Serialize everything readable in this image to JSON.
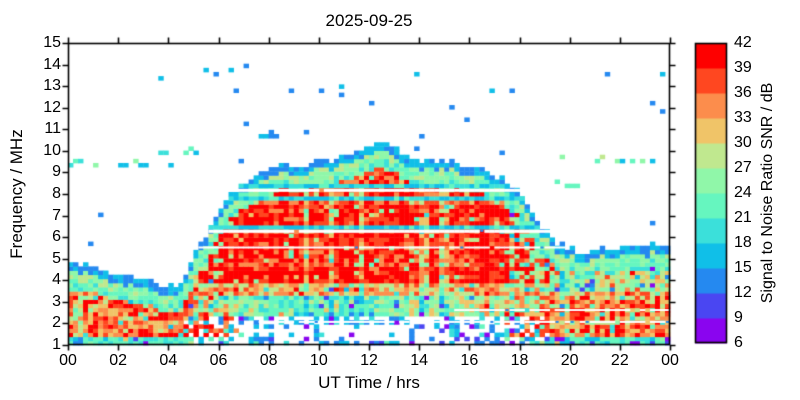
{
  "chart_data": {
    "type": "heatmap",
    "title": "2025-09-25",
    "xlabel": "UT Time / hrs",
    "ylabel": "Frequency / MHz",
    "xlim": [
      0,
      24
    ],
    "ylim": [
      1,
      15
    ],
    "grid": false,
    "x_tick_labels": [
      "00",
      "02",
      "04",
      "06",
      "08",
      "10",
      "12",
      "14",
      "16",
      "18",
      "20",
      "22",
      "00"
    ],
    "y_tick_labels": [
      "1",
      "2",
      "3",
      "4",
      "5",
      "6",
      "7",
      "8",
      "9",
      "10",
      "11",
      "12",
      "13",
      "14",
      "15"
    ],
    "colorbar": {
      "label": "Signal to Noise Ratio SNR / dB",
      "min": 6,
      "max": 42,
      "step": 3,
      "tick_labels": [
        "6",
        "9",
        "12",
        "15",
        "18",
        "21",
        "24",
        "27",
        "30",
        "33",
        "36",
        "39",
        "42"
      ],
      "colors": [
        "#8a05ef",
        "#4a46f2",
        "#2589f0",
        "#10bfe8",
        "#3be0da",
        "#66f6bf",
        "#90f7a9",
        "#c0e88f",
        "#f0c468",
        "#fc8d4c",
        "#ff4720",
        "#fe0000"
      ]
    },
    "envelope_mhz_by_hour": {
      "t": [
        0,
        0.5,
        1,
        1.5,
        2,
        2.5,
        3,
        3.5,
        4,
        4.3,
        4.7,
        5,
        5.5,
        6,
        6.5,
        7,
        7.5,
        8,
        8.5,
        9,
        9.5,
        10,
        10.5,
        11,
        11.5,
        12,
        12.4,
        12.8,
        13.2,
        13.6,
        14,
        14.5,
        15,
        15.5,
        16,
        16.5,
        17,
        17.5,
        18,
        18.5,
        19,
        19.4,
        19.8,
        20.2,
        20.6,
        21,
        21.5,
        22,
        22.5,
        23,
        23.5,
        24
      ],
      "f": [
        4.8,
        4.7,
        4.55,
        4.45,
        4.3,
        4.2,
        4.05,
        3.85,
        3.7,
        3.65,
        4.3,
        5.1,
        6.2,
        7.2,
        8.0,
        8.5,
        8.85,
        9.15,
        9.3,
        9.45,
        9.3,
        9.55,
        9.5,
        9.75,
        10.0,
        10.25,
        10.4,
        10.25,
        9.9,
        9.6,
        9.55,
        9.65,
        9.5,
        9.55,
        9.3,
        9.15,
        8.85,
        8.55,
        8.0,
        7.2,
        6.3,
        5.8,
        5.55,
        5.4,
        5.3,
        5.45,
        5.55,
        5.5,
        5.6,
        5.55,
        5.65,
        5.7
      ]
    },
    "night_strong_band_mhz": [
      1.35,
      3.4
    ],
    "day_strong_band_lower_mhz": 3.9,
    "day_hours": [
      4.4,
      19.9
    ],
    "gap_lines": [
      {
        "f": 8.17,
        "t0": 6.3,
        "t1": 19.0,
        "w": 3,
        "dash_p": 0.95
      },
      {
        "f": 6.27,
        "t0": 5.0,
        "t1": 19.4,
        "w": 3,
        "dash_p": 0.95
      },
      {
        "f": 5.52,
        "t0": 5.2,
        "t1": 19.8,
        "w": 2,
        "dash_p": 0.9
      },
      {
        "f": 2.07,
        "t0": 7.5,
        "t1": 24.0,
        "w": 2,
        "dash_p": 0.8
      },
      {
        "f": 2.62,
        "t0": 15.5,
        "t1": 24.0,
        "w": 2,
        "dash_p": 0.8
      }
    ],
    "interference_lines": [
      {
        "f": 7.9,
        "t0": 6.3,
        "t1": 19.0
      },
      {
        "f": 8.45,
        "t0": 6.5,
        "t1": 18.8
      },
      {
        "f": 6.42,
        "t0": 5.2,
        "t1": 19.3
      }
    ],
    "sporadic_traces": [
      {
        "f": 9.4,
        "t0": 0.0,
        "t1": 4.6,
        "p": 0.5,
        "snr_min": 14,
        "snr_max": 26
      },
      {
        "f": 10.0,
        "t0": 3.4,
        "t1": 5.2,
        "p": 0.65,
        "snr_min": 15,
        "snr_max": 24
      },
      {
        "f": 13.85,
        "t0": 5.6,
        "t1": 7.4,
        "p": 0.3,
        "snr_min": 13,
        "snr_max": 20
      },
      {
        "f": 13.2,
        "t0": 3.5,
        "t1": 4.1,
        "p": 0.4,
        "snr_min": 15,
        "snr_max": 21
      },
      {
        "f": 9.55,
        "t0": 19.2,
        "t1": 23.9,
        "p": 0.45,
        "snr_min": 14,
        "snr_max": 30
      },
      {
        "f": 8.45,
        "t0": 19.4,
        "t1": 20.8,
        "p": 0.5,
        "snr_min": 13,
        "snr_max": 28
      },
      {
        "f": 7.1,
        "t0": 1.2,
        "t1": 2.0,
        "p": 0.5,
        "snr_min": 12,
        "snr_max": 17
      },
      {
        "f": 6.55,
        "t0": 0.1,
        "t1": 0.8,
        "p": 0.4,
        "snr_min": 12,
        "snr_max": 17
      },
      {
        "f": 10.7,
        "t0": 7.6,
        "t1": 8.1,
        "p": 0.4,
        "snr_min": 12,
        "snr_max": 16
      }
    ],
    "scatter_dot_count": 26
  }
}
